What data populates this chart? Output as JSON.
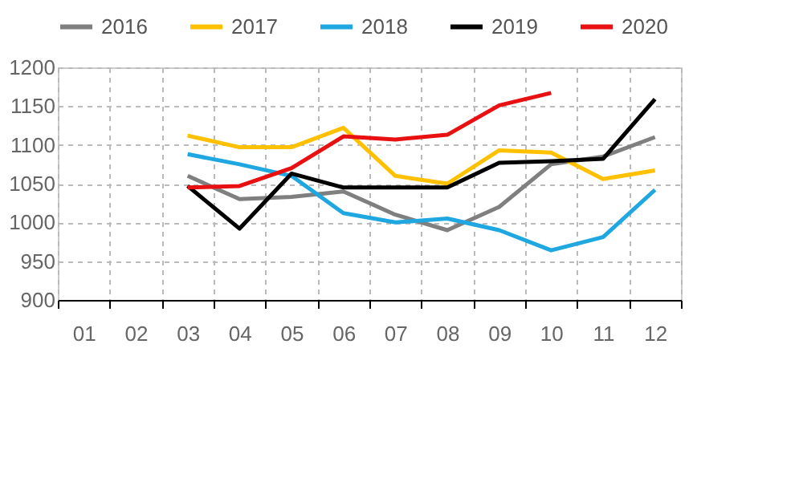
{
  "chart_data": {
    "type": "line",
    "categories": [
      "01",
      "02",
      "03",
      "04",
      "05",
      "06",
      "07",
      "08",
      "09",
      "10",
      "11",
      "12"
    ],
    "series": [
      {
        "name": "2016",
        "color": "#7f7f7f",
        "values": [
          null,
          null,
          1060,
          1030,
          1033,
          1040,
          1010,
          990,
          1020,
          1075,
          1085,
          1110
        ]
      },
      {
        "name": "2017",
        "color": "#ffc000",
        "values": [
          null,
          null,
          1112,
          1097,
          1097,
          1122,
          1060,
          1050,
          1093,
          1090,
          1056,
          1067
        ]
      },
      {
        "name": "2018",
        "color": "#1ea7e1",
        "values": [
          null,
          null,
          1088,
          1075,
          1060,
          1012,
          1000,
          1005,
          990,
          964,
          981,
          1042
        ]
      },
      {
        "name": "2019",
        "color": "#000000",
        "values": [
          null,
          null,
          1047,
          992,
          1063,
          1045,
          1045,
          1045,
          1077,
          1079,
          1082,
          1159
        ]
      },
      {
        "name": "2020",
        "color": "#e81010",
        "values": [
          null,
          null,
          1045,
          1047,
          1070,
          1111,
          1107,
          1113,
          1151,
          1167,
          null,
          null
        ]
      }
    ],
    "ylim": [
      900,
      1200
    ],
    "yticks": [
      900,
      950,
      1000,
      1050,
      1100,
      1150,
      1200
    ],
    "grid": true,
    "legend": "top",
    "marker": "none",
    "line_style": "solid"
  }
}
